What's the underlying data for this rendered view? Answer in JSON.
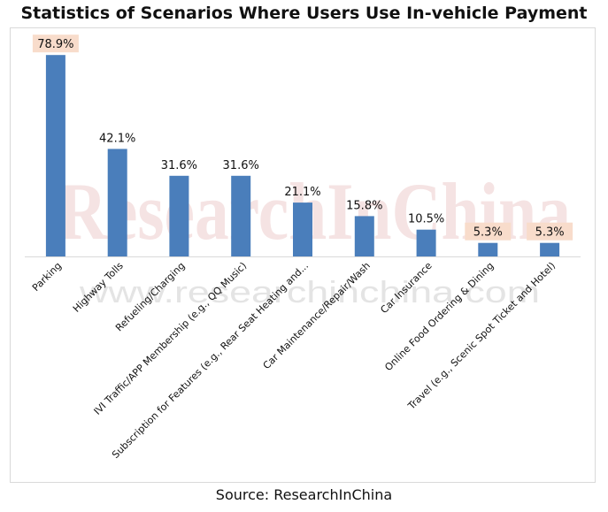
{
  "title": "Statistics of Scenarios Where Users Use In-vehicle Payment",
  "source": "Source: ResearchInChina",
  "watermark": {
    "big": "ResearchInChina",
    "small": "www.researchinchina.com"
  },
  "colors": {
    "bar": "#4a7ebb",
    "highlight_label_bg": "#f8dccb",
    "axis": "#d9d9d9",
    "watermark_big": "#f5e3e3",
    "watermark_small": "#e4e4e4"
  },
  "chart_data": {
    "type": "bar",
    "categories": [
      "Parking",
      "Highway Tolls",
      "Refueling/Charging",
      "IVI Traffic/APP Membership (e.g., QQ Music)",
      "Subscription for Features (e.g., Rear Seat Heating and...",
      "Car Maintenance/Repair/Wash",
      "Car Insurance",
      "Online Food Ordering & Dining",
      "Travel (e.g., Scenic Spot Ticket and Hotel)"
    ],
    "values": [
      78.9,
      42.1,
      31.6,
      31.6,
      21.1,
      15.8,
      10.5,
      5.3,
      5.3
    ],
    "data_labels": [
      "78.9%",
      "42.1%",
      "31.6%",
      "31.6%",
      "21.1%",
      "15.8%",
      "10.5%",
      "5.3%",
      "5.3%"
    ],
    "highlighted_labels": [
      0,
      7,
      8
    ],
    "ylim": [
      0,
      80
    ],
    "grid": false,
    "legend": "none",
    "xlabel": "",
    "ylabel": ""
  }
}
